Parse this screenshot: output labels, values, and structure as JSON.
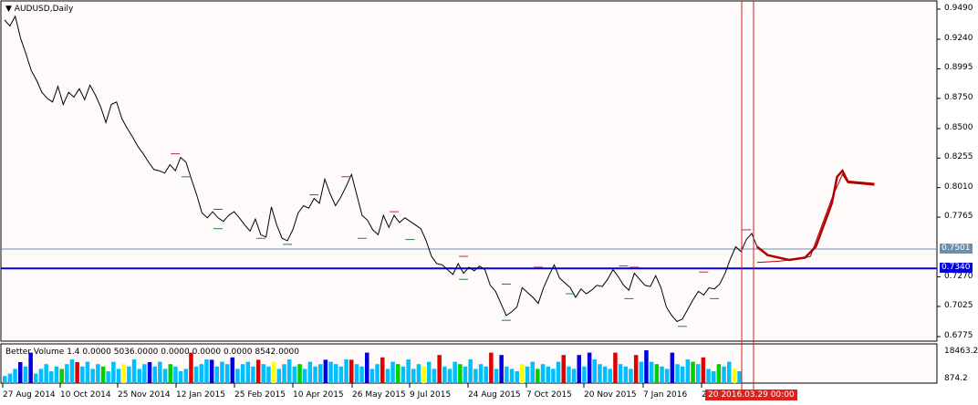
{
  "window": {
    "title": "AUDUSD,Daily",
    "title_arrow": "triangle-down-icon"
  },
  "colors": {
    "background": "#fffafa",
    "price_line": "#000000",
    "horizontal_line": "#0000e0",
    "level_line": "#6f8fb0",
    "forecast_line": "#b00000",
    "cursor_line": "#d02020",
    "volume_neutral": "#00bfff",
    "volume_up": "#00d000",
    "volume_down": "#e00000",
    "volume_climax": "#0000e0",
    "volume_low": "#ffff00",
    "marker_high": "#c0205a",
    "marker_low": "#208050"
  },
  "price_axis": {
    "ticks": [
      "0.9490",
      "0.9240",
      "0.8995",
      "0.8750",
      "0.8500",
      "0.8255",
      "0.8010",
      "0.7765",
      "0.7270",
      "0.7025",
      "0.6775"
    ],
    "range": [
      0.6775,
      0.949
    ],
    "current_price_label": "0.7501",
    "horizontal_line_label": "0.7340"
  },
  "volume_axis": {
    "ticks": [
      "18463.2",
      "874.2"
    ]
  },
  "volume_indicator": {
    "title": "Better Volume 1.4 0.0000 5036.0000 0.0000 0.0000 0.0000 8542.0000"
  },
  "time_axis": {
    "labels": [
      "27 Aug 2014",
      "10 Oct 2014",
      "25 Nov 2014",
      "12 Jan 2015",
      "25 Feb 2015",
      "10 Apr 2015",
      "26 May 2015",
      "9 Jul 2015",
      "24 Aug 2015",
      "7 Oct 2015",
      "20 Nov 2015",
      "7 Jan 2016",
      "2"
    ],
    "cursor_label": "20 2016.03.29 00:00"
  },
  "chart_data": {
    "type": "line",
    "title": "AUDUSD,Daily",
    "ylim": [
      0.6775,
      0.949
    ],
    "price_path": [
      [
        0,
        0.94
      ],
      [
        1,
        0.935
      ],
      [
        2,
        0.943
      ],
      [
        3,
        0.925
      ],
      [
        4,
        0.912
      ],
      [
        5,
        0.898
      ],
      [
        6,
        0.89
      ],
      [
        7,
        0.88
      ],
      [
        8,
        0.875
      ],
      [
        9,
        0.872
      ],
      [
        10,
        0.885
      ],
      [
        11,
        0.87
      ],
      [
        12,
        0.88
      ],
      [
        13,
        0.876
      ],
      [
        14,
        0.883
      ],
      [
        15,
        0.874
      ],
      [
        16,
        0.886
      ],
      [
        17,
        0.878
      ],
      [
        18,
        0.868
      ],
      [
        19,
        0.855
      ],
      [
        20,
        0.87
      ],
      [
        21,
        0.872
      ],
      [
        22,
        0.858
      ],
      [
        23,
        0.85
      ],
      [
        24,
        0.843
      ],
      [
        25,
        0.835
      ],
      [
        26,
        0.829
      ],
      [
        27,
        0.822
      ],
      [
        28,
        0.816
      ],
      [
        29,
        0.815
      ],
      [
        30,
        0.813
      ],
      [
        31,
        0.82
      ],
      [
        32,
        0.815
      ],
      [
        33,
        0.826
      ],
      [
        34,
        0.822
      ],
      [
        35,
        0.808
      ],
      [
        36,
        0.795
      ],
      [
        37,
        0.78
      ],
      [
        38,
        0.776
      ],
      [
        39,
        0.781
      ],
      [
        40,
        0.776
      ],
      [
        41,
        0.773
      ],
      [
        42,
        0.778
      ],
      [
        43,
        0.781
      ],
      [
        44,
        0.776
      ],
      [
        45,
        0.77
      ],
      [
        46,
        0.765
      ],
      [
        47,
        0.775
      ],
      [
        48,
        0.762
      ],
      [
        49,
        0.76
      ],
      [
        50,
        0.785
      ],
      [
        51,
        0.77
      ],
      [
        52,
        0.759
      ],
      [
        53,
        0.757
      ],
      [
        54,
        0.766
      ],
      [
        55,
        0.78
      ],
      [
        56,
        0.786
      ],
      [
        57,
        0.784
      ],
      [
        58,
        0.792
      ],
      [
        59,
        0.788
      ],
      [
        60,
        0.808
      ],
      [
        61,
        0.796
      ],
      [
        62,
        0.786
      ],
      [
        63,
        0.793
      ],
      [
        64,
        0.802
      ],
      [
        65,
        0.812
      ],
      [
        66,
        0.795
      ],
      [
        67,
        0.778
      ],
      [
        68,
        0.774
      ],
      [
        69,
        0.766
      ],
      [
        70,
        0.762
      ],
      [
        71,
        0.778
      ],
      [
        72,
        0.768
      ],
      [
        73,
        0.778
      ],
      [
        74,
        0.772
      ],
      [
        75,
        0.776
      ],
      [
        76,
        0.773
      ],
      [
        77,
        0.77
      ],
      [
        78,
        0.767
      ],
      [
        79,
        0.757
      ],
      [
        80,
        0.744
      ],
      [
        81,
        0.738
      ],
      [
        82,
        0.737
      ],
      [
        83,
        0.733
      ],
      [
        84,
        0.729
      ],
      [
        85,
        0.738
      ],
      [
        86,
        0.73
      ],
      [
        87,
        0.735
      ],
      [
        88,
        0.732
      ],
      [
        89,
        0.736
      ],
      [
        90,
        0.733
      ],
      [
        91,
        0.72
      ],
      [
        92,
        0.715
      ],
      [
        93,
        0.705
      ],
      [
        94,
        0.695
      ],
      [
        95,
        0.698
      ],
      [
        96,
        0.702
      ],
      [
        97,
        0.718
      ],
      [
        98,
        0.714
      ],
      [
        99,
        0.71
      ],
      [
        100,
        0.705
      ],
      [
        101,
        0.718
      ],
      [
        102,
        0.728
      ],
      [
        103,
        0.737
      ],
      [
        104,
        0.726
      ],
      [
        105,
        0.722
      ],
      [
        106,
        0.718
      ],
      [
        107,
        0.71
      ],
      [
        108,
        0.717
      ],
      [
        109,
        0.713
      ],
      [
        110,
        0.716
      ],
      [
        111,
        0.72
      ],
      [
        112,
        0.719
      ],
      [
        113,
        0.725
      ],
      [
        114,
        0.733
      ],
      [
        115,
        0.727
      ],
      [
        116,
        0.72
      ],
      [
        117,
        0.716
      ],
      [
        118,
        0.73
      ],
      [
        119,
        0.725
      ],
      [
        120,
        0.72
      ],
      [
        121,
        0.719
      ],
      [
        122,
        0.728
      ],
      [
        123,
        0.718
      ],
      [
        124,
        0.702
      ],
      [
        125,
        0.695
      ],
      [
        126,
        0.69
      ],
      [
        127,
        0.692
      ],
      [
        128,
        0.7
      ],
      [
        129,
        0.708
      ],
      [
        130,
        0.715
      ],
      [
        131,
        0.712
      ],
      [
        132,
        0.718
      ],
      [
        133,
        0.717
      ],
      [
        134,
        0.721
      ],
      [
        135,
        0.73
      ],
      [
        136,
        0.742
      ],
      [
        137,
        0.752
      ],
      [
        138,
        0.748
      ],
      [
        139,
        0.758
      ],
      [
        140,
        0.763
      ],
      [
        141,
        0.752
      ]
    ],
    "forecast_path": [
      [
        141,
        0.752
      ],
      [
        143,
        0.745
      ],
      [
        147,
        0.741
      ],
      [
        150,
        0.743
      ],
      [
        152,
        0.752
      ],
      [
        155,
        0.788
      ],
      [
        156,
        0.81
      ],
      [
        157,
        0.815
      ],
      [
        158,
        0.806
      ],
      [
        163,
        0.804
      ]
    ],
    "forecast_lower_path": [
      [
        141,
        0.739
      ],
      [
        145,
        0.74
      ],
      [
        149,
        0.742
      ],
      [
        151,
        0.744
      ],
      [
        153,
        0.768
      ],
      [
        155,
        0.792
      ],
      [
        157,
        0.812
      ],
      [
        158,
        0.805
      ],
      [
        163,
        0.803
      ]
    ],
    "current_price": 0.7501,
    "horizontal_line": 0.734,
    "high_markers": [
      [
        32,
        0.826
      ],
      [
        40,
        0.78
      ],
      [
        58,
        0.792
      ],
      [
        64,
        0.807
      ],
      [
        73,
        0.778
      ],
      [
        86,
        0.741
      ],
      [
        94,
        0.718
      ],
      [
        100,
        0.732
      ],
      [
        116,
        0.733
      ],
      [
        118,
        0.732
      ],
      [
        131,
        0.728
      ],
      [
        139,
        0.763
      ]
    ],
    "low_markers": [
      [
        34,
        0.813
      ],
      [
        40,
        0.77
      ],
      [
        48,
        0.762
      ],
      [
        53,
        0.757
      ],
      [
        67,
        0.762
      ],
      [
        76,
        0.761
      ],
      [
        86,
        0.728
      ],
      [
        94,
        0.694
      ],
      [
        106,
        0.716
      ],
      [
        117,
        0.712
      ],
      [
        127,
        0.689
      ],
      [
        133,
        0.712
      ]
    ],
    "volume_values": [
      3,
      4,
      6,
      5,
      7,
      9,
      4,
      6,
      8,
      5,
      7,
      6,
      8,
      10,
      5,
      7,
      9,
      6,
      8,
      7,
      5,
      9,
      6,
      8,
      7,
      10,
      6,
      8,
      5,
      7,
      9,
      6,
      8,
      7,
      5,
      6,
      9,
      7,
      8,
      10,
      6,
      7,
      9,
      8,
      7,
      6,
      8,
      9,
      7,
      6,
      8,
      7,
      9,
      6,
      8,
      10,
      7,
      8,
      6,
      9,
      7,
      8,
      6,
      9,
      8,
      7,
      10,
      6,
      8,
      7,
      9,
      6,
      8,
      7,
      6,
      9,
      8,
      7,
      10,
      6,
      8,
      7,
      9,
      6,
      8,
      7,
      6,
      9,
      8,
      7,
      10,
      6,
      8,
      7,
      9,
      6,
      8,
      7,
      6,
      5,
      8,
      7,
      9,
      6,
      8,
      7,
      6,
      9,
      8,
      7,
      6,
      8,
      7,
      9,
      10,
      8,
      7,
      6,
      9,
      8,
      7,
      6,
      8,
      9,
      10,
      9,
      8,
      7,
      6,
      9,
      8,
      7,
      10,
      9,
      8,
      7,
      6,
      5,
      8,
      7,
      9,
      6,
      5
    ],
    "volume_colors": {
      "up": [
        11,
        19,
        32,
        57,
        76,
        88,
        103,
        126,
        133,
        138
      ],
      "down": [
        14,
        36,
        49,
        67,
        73,
        84,
        94,
        108,
        118,
        122,
        135
      ],
      "climax": [
        3,
        5,
        28,
        40,
        44,
        62,
        70,
        96,
        111,
        113,
        124,
        129
      ],
      "low": [
        23,
        52,
        81,
        100,
        141
      ]
    }
  }
}
